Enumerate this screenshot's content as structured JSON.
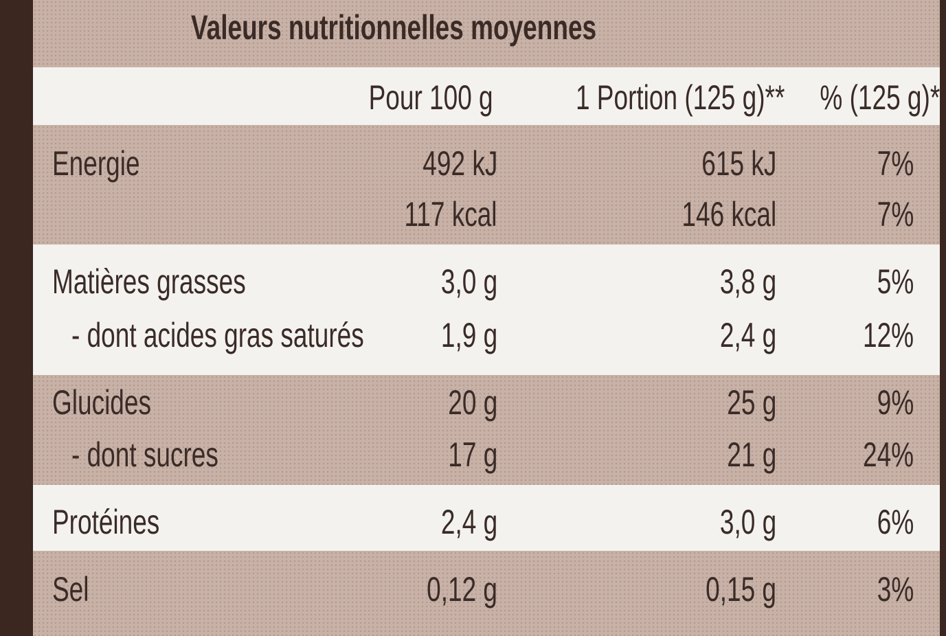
{
  "title": "Valeurs nutritionnelles moyennes",
  "header": [
    "Pour 100 g",
    "1 Portion (125 g)**",
    "% (125 g)*"
  ],
  "groups": [
    {
      "rows": [
        {
          "label": "Energie",
          "cells": [
            "492 kJ",
            "615 kJ",
            "7%"
          ]
        },
        {
          "cells": [
            "117 kcal",
            "146 kcal",
            "7%"
          ]
        }
      ]
    },
    {
      "rows": [
        {
          "label": "Matières grasses",
          "cells": [
            "3,0 g",
            "3,8 g",
            "5%"
          ]
        },
        {
          "label": "- dont acides gras saturés",
          "cells": [
            "1,9 g",
            "2,4 g",
            "12%"
          ]
        }
      ]
    },
    {
      "rows": [
        {
          "label": "Glucides",
          "cells": [
            "20 g",
            "25 g",
            "9%"
          ]
        },
        {
          "label": "- dont sucres",
          "cells": [
            "17 g",
            "21 g",
            "24%"
          ]
        }
      ]
    },
    {
      "rows": [
        {
          "label": "Protéines",
          "cells": [
            "2,4 g",
            "3,0 g",
            "6%"
          ]
        }
      ]
    },
    {
      "rows": [
        {
          "label": "Sel",
          "cells": [
            "0,12 g",
            "0,15 g",
            "3%"
          ]
        }
      ]
    }
  ]
}
